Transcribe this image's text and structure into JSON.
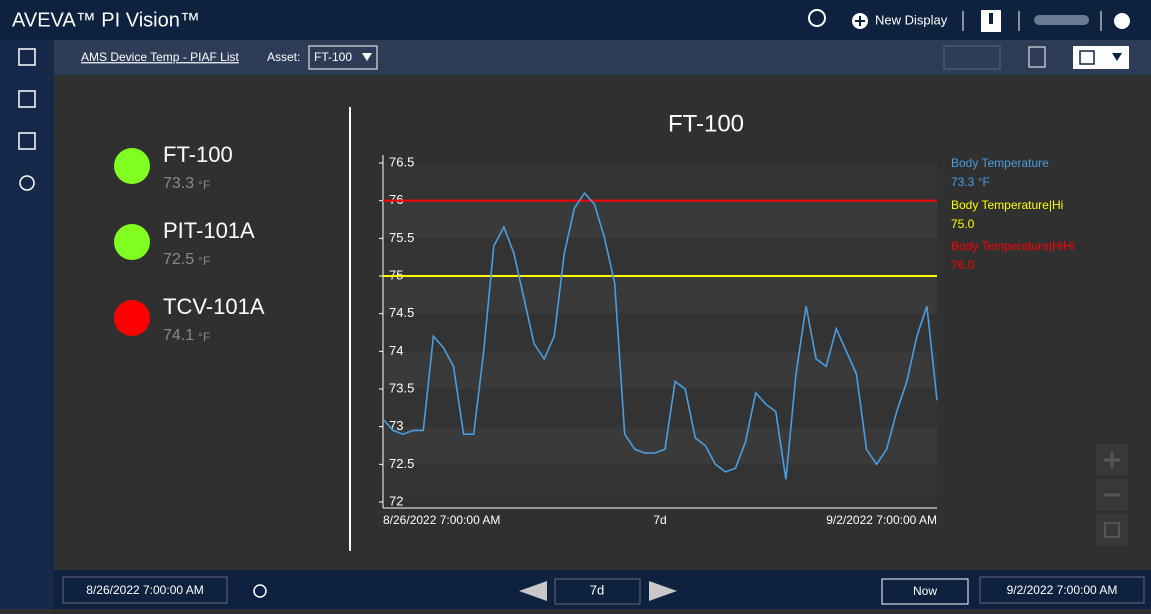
{
  "header": {
    "title": "AVEVA™ PI Vision™",
    "new_display": "New Display"
  },
  "toolbar": {
    "display_name": "AMS Device Temp - PIAF List",
    "asset_label": "Asset:",
    "asset": "FT-100"
  },
  "assets": [
    {
      "name": "FT-100",
      "value": 73.3,
      "unit": "°F",
      "color": "#80ff20"
    },
    {
      "name": "PIT-101A",
      "value": 72.5,
      "unit": "°F",
      "color": "#80ff20"
    },
    {
      "name": "TCV-101A",
      "value": 74.1,
      "unit": "°F",
      "color": "#ff0000"
    }
  ],
  "chart_data": {
    "type": "line",
    "title": "FT-100",
    "x_labels": [
      "8/26/2022 7:00:00 AM",
      "7d",
      "9/2/2022 7:00:00 AM"
    ],
    "ylim": [
      72,
      76.5
    ],
    "yticks": [
      72,
      72.5,
      73,
      73.5,
      74,
      74.5,
      75,
      75.5,
      76,
      76.5
    ],
    "grid": true,
    "series": [
      {
        "name": "Body Temperature",
        "color": "#4a9ee0",
        "current_value": 73.3,
        "current_value_label": "73.3 °F",
        "values": [
          73.1,
          72.95,
          72.9,
          72.95,
          72.95,
          74.2,
          74.05,
          73.8,
          72.9,
          72.9,
          74.0,
          75.4,
          75.65,
          75.3,
          74.7,
          74.1,
          73.9,
          74.2,
          75.3,
          75.9,
          76.1,
          75.95,
          75.5,
          74.9,
          72.9,
          72.7,
          72.65,
          72.65,
          72.7,
          73.6,
          73.5,
          72.85,
          72.75,
          72.5,
          72.4,
          72.45,
          72.8,
          73.45,
          73.3,
          73.2,
          72.3,
          73.7,
          74.6,
          73.9,
          73.8,
          74.3,
          74.0,
          73.7,
          72.7,
          72.5,
          72.7,
          73.2,
          73.6,
          74.2,
          74.6,
          73.35
        ]
      }
    ],
    "limits": [
      {
        "name": "Body Temperature|Hi",
        "value": 75,
        "value_label": "75.0",
        "color": "#ffff00"
      },
      {
        "name": "Body Temperature|HiHi",
        "value": 76,
        "value_label": "76.0",
        "color": "#ff0000"
      }
    ]
  },
  "timebar": {
    "start": "8/26/2022 7:00:00 AM",
    "duration": "7d",
    "now": "Now",
    "end": "9/2/2022 7:00:00 AM"
  }
}
